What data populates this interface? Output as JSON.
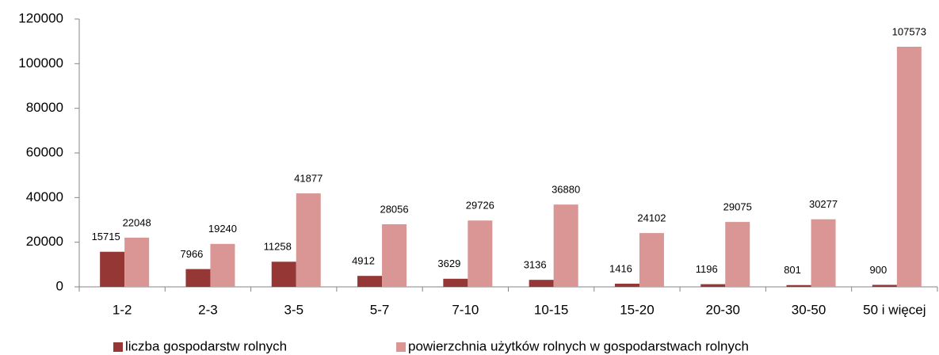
{
  "chart_data": {
    "type": "bar",
    "categories": [
      "1-2",
      "2-3",
      "3-5",
      "5-7",
      "7-10",
      "10-15",
      "15-20",
      "20-30",
      "30-50",
      "50 i więcej"
    ],
    "series": [
      {
        "name": "liczba gospodarstw rolnych",
        "color": "#953735",
        "values": [
          15715,
          7966,
          11258,
          4912,
          3629,
          3136,
          1416,
          1196,
          801,
          900
        ]
      },
      {
        "name": "powierzchnia użytków rolnych w gospodarstwach rolnych",
        "color": "#d99694",
        "values": [
          22048,
          19240,
          41877,
          28056,
          29726,
          36880,
          24102,
          29075,
          30277,
          107573
        ]
      }
    ],
    "ylim": [
      0,
      120000
    ],
    "yticks": [
      0,
      20000,
      40000,
      60000,
      80000,
      100000,
      120000
    ],
    "grid": false,
    "legend": "bottom",
    "data_labels": true
  }
}
